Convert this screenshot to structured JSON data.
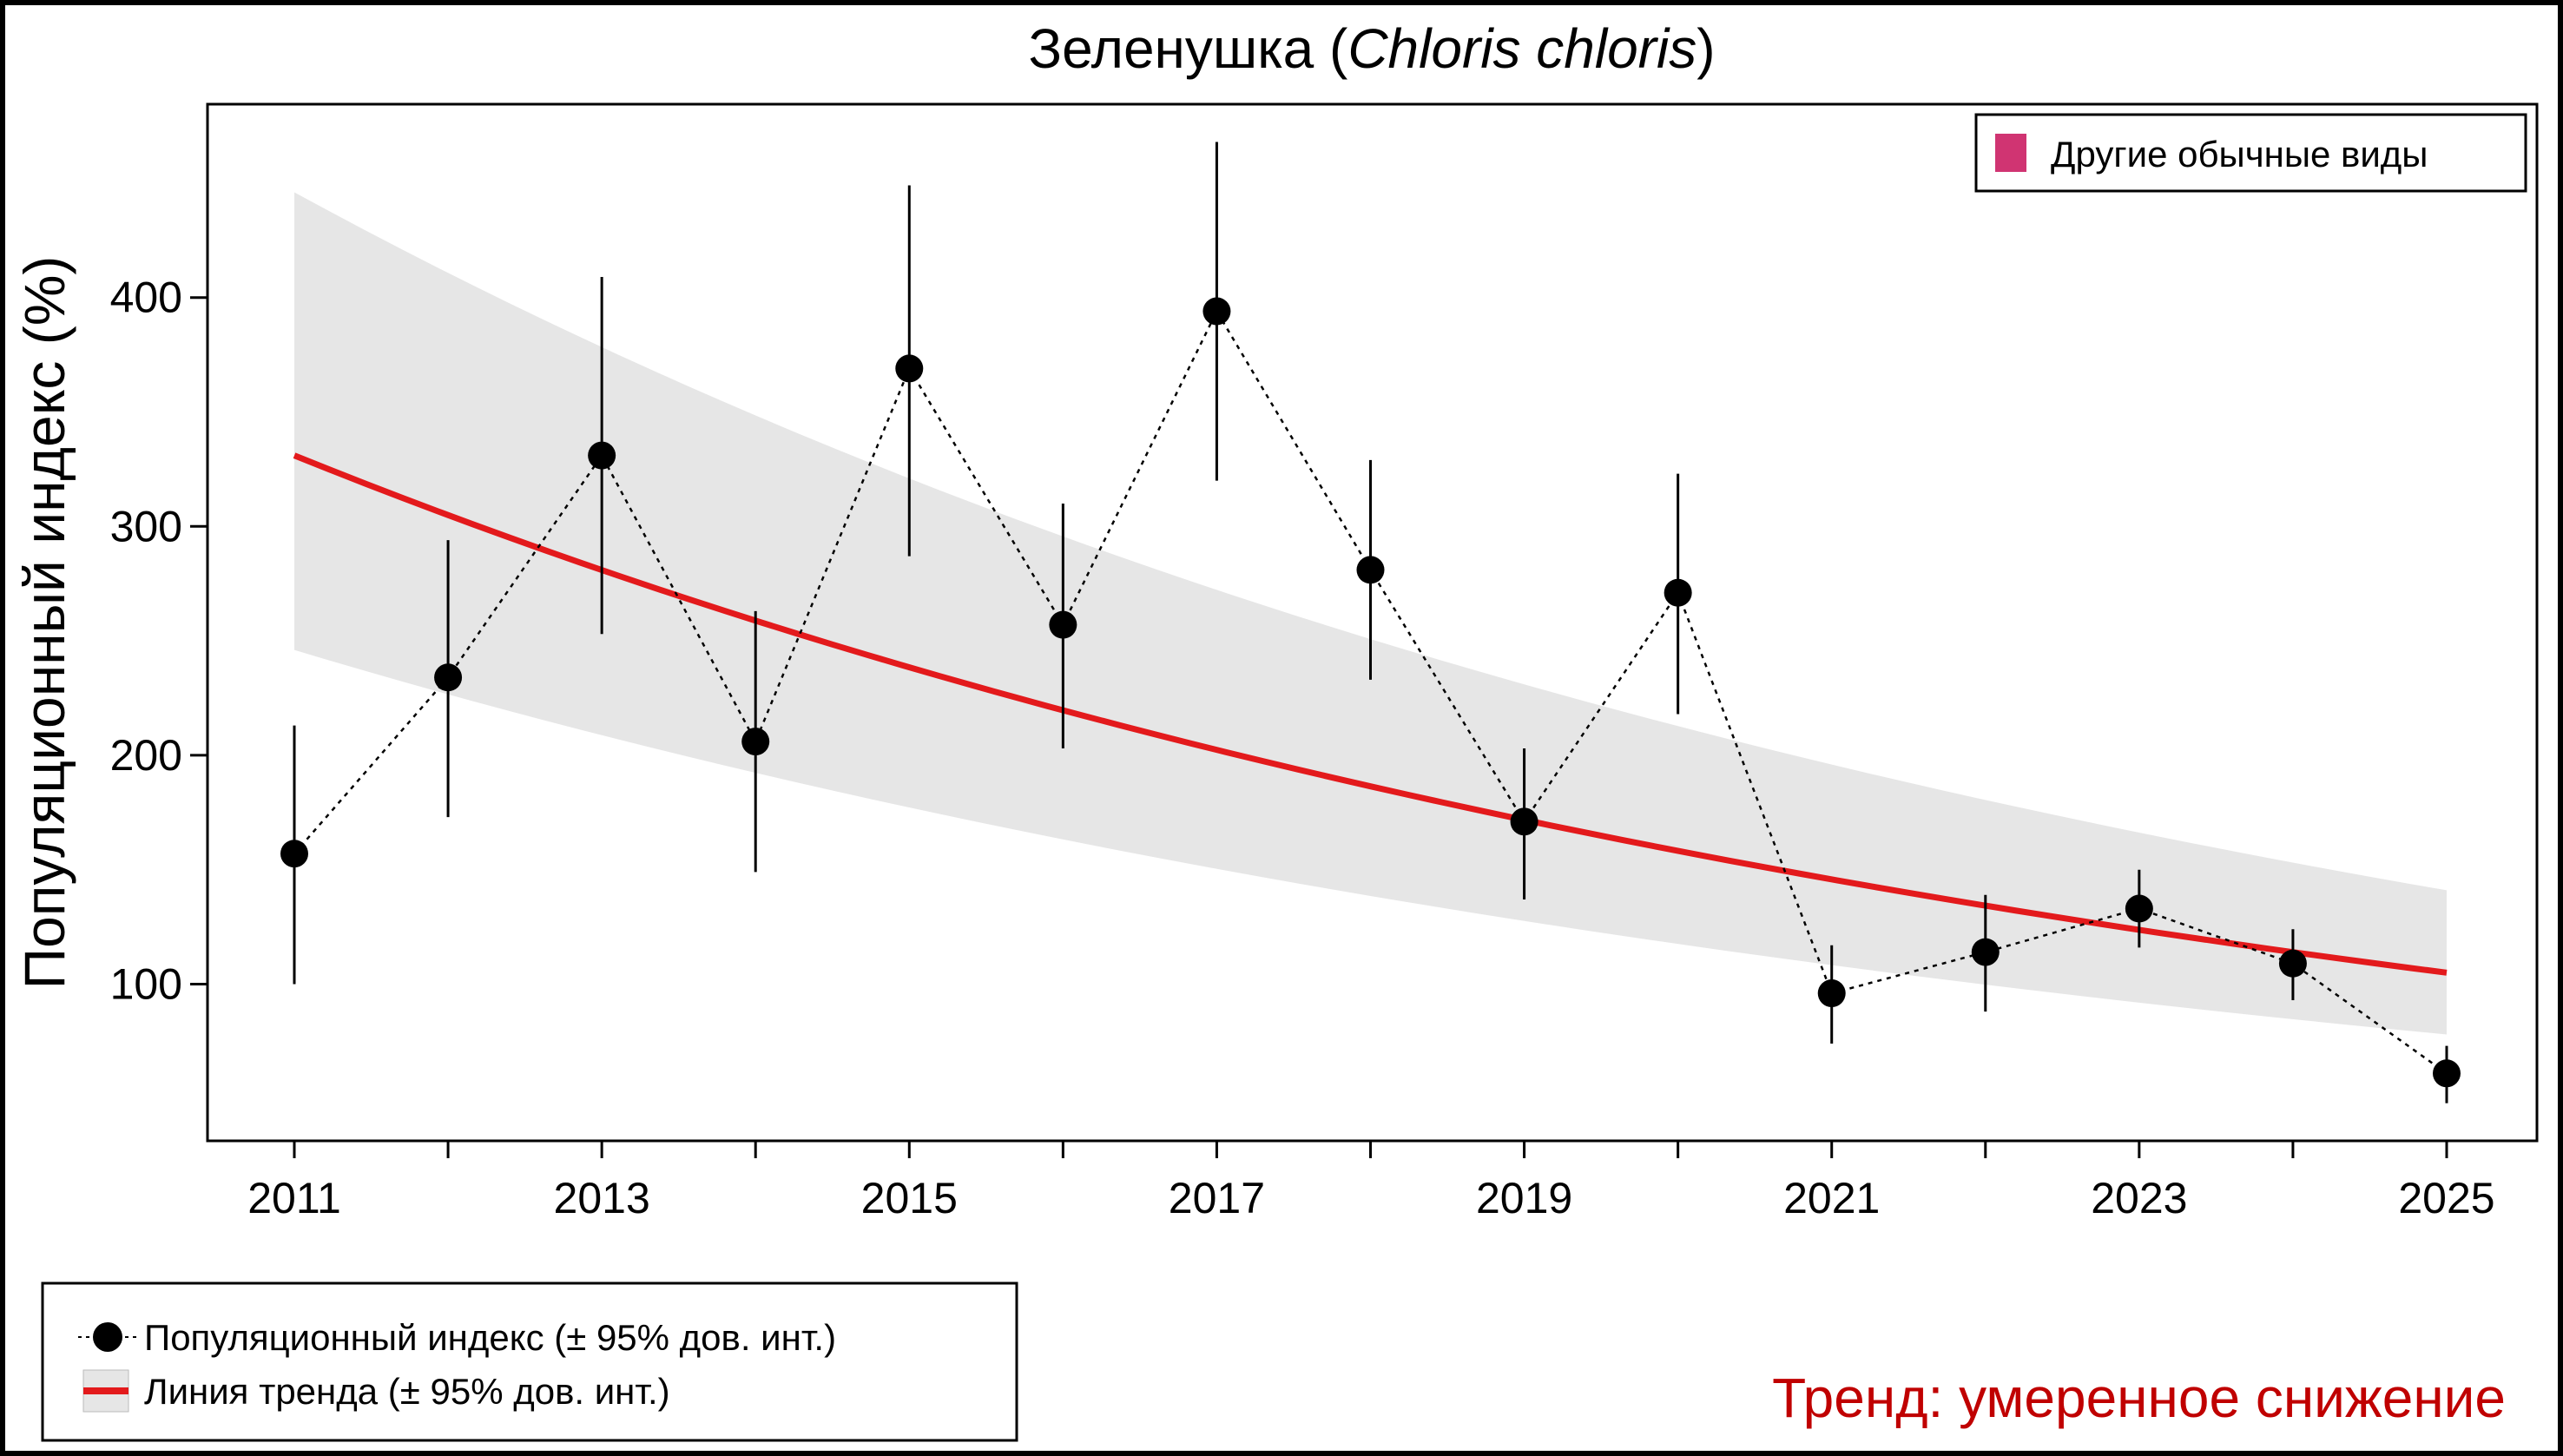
{
  "chart_data": {
    "type": "line",
    "title": "Зеленушка",
    "title_latin": "Chloris chloris",
    "ylabel": "Популяционный индекс (%)",
    "xlabel": "",
    "xlim": [
      2011,
      2025
    ],
    "ylim": [
      31,
      484
    ],
    "x_ticks": [
      2011,
      2013,
      2015,
      2017,
      2019,
      2021,
      2023,
      2025
    ],
    "y_ticks": [
      100,
      200,
      300,
      400
    ],
    "grid": false,
    "years": [
      2011,
      2012,
      2013,
      2014,
      2015,
      2016,
      2017,
      2018,
      2019,
      2020,
      2021,
      2022,
      2023,
      2024,
      2025
    ],
    "index": [
      157,
      234,
      331,
      206,
      369,
      257,
      394,
      281,
      171,
      271,
      96,
      114,
      133,
      109,
      61
    ],
    "index_upper": [
      213,
      294,
      409,
      263,
      449,
      310,
      468,
      329,
      203,
      323,
      117,
      139,
      150,
      124,
      73
    ],
    "index_lower": [
      100,
      173,
      253,
      149,
      287,
      203,
      320,
      233,
      137,
      218,
      74,
      88,
      116,
      93,
      48
    ],
    "trend": {
      "start": 331,
      "end": 105
    },
    "trend_band": {
      "upper_start": 446,
      "upper_end": 141,
      "lower_start": 246,
      "lower_end": 78
    },
    "colors": {
      "points": "#000000",
      "trend": "#e31a1c",
      "band": "#e6e6e6",
      "other_species": "#d03472",
      "trend_text": "#c00000"
    },
    "legend_top": {
      "label": "Другие обычные виды",
      "placement": "top-right"
    },
    "legend_bottom": {
      "index_label": "Популяционный индекс (± 95% дов. инт.)",
      "trend_label": "Линия тренда (± 95% дов. инт.)",
      "placement": "bottom-left"
    },
    "trend_text": "Тренд: умеренное снижение"
  }
}
